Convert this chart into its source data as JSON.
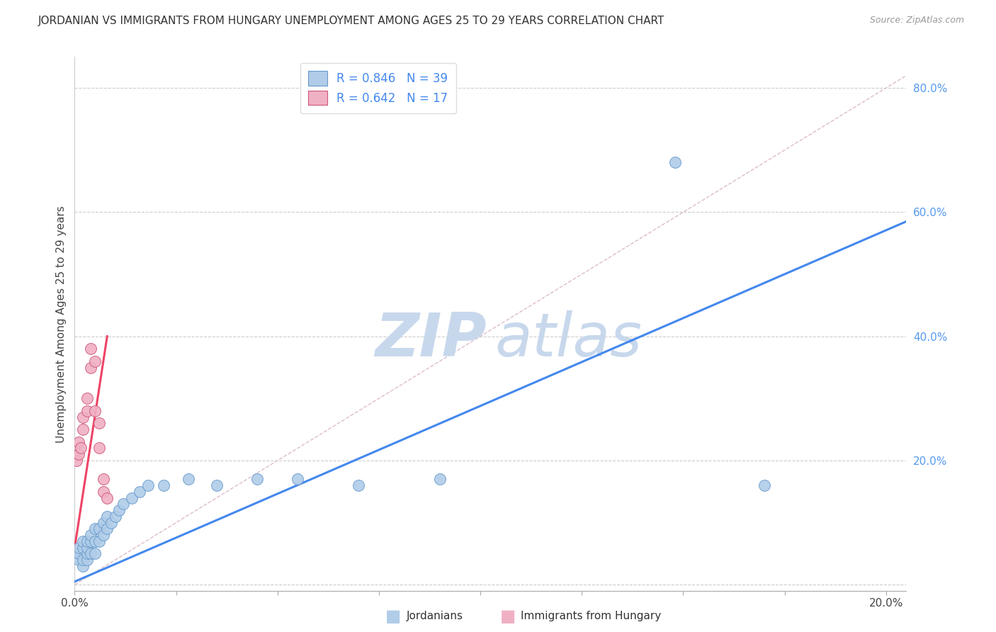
{
  "title": "JORDANIAN VS IMMIGRANTS FROM HUNGARY UNEMPLOYMENT AMONG AGES 25 TO 29 YEARS CORRELATION CHART",
  "source": "Source: ZipAtlas.com",
  "ylabel": "Unemployment Among Ages 25 to 29 years",
  "xlim": [
    0.0,
    0.205
  ],
  "ylim": [
    -0.01,
    0.85
  ],
  "xtick_positions": [
    0.0,
    0.025,
    0.05,
    0.075,
    0.1,
    0.125,
    0.15,
    0.175,
    0.2
  ],
  "ytick_positions": [
    0.0,
    0.2,
    0.4,
    0.6,
    0.8
  ],
  "ytick_labels": [
    "",
    "20.0%",
    "40.0%",
    "60.0%",
    "80.0%"
  ],
  "legend_r1": "R = 0.846",
  "legend_n1": "N = 39",
  "legend_r2": "R = 0.642",
  "legend_n2": "N = 17",
  "jordanians_x": [
    0.001,
    0.001,
    0.001,
    0.002,
    0.002,
    0.002,
    0.002,
    0.003,
    0.003,
    0.003,
    0.003,
    0.004,
    0.004,
    0.004,
    0.005,
    0.005,
    0.005,
    0.006,
    0.006,
    0.007,
    0.007,
    0.008,
    0.008,
    0.009,
    0.01,
    0.011,
    0.012,
    0.014,
    0.016,
    0.018,
    0.022,
    0.028,
    0.035,
    0.045,
    0.055,
    0.07,
    0.09,
    0.148,
    0.17
  ],
  "jordanians_y": [
    0.04,
    0.05,
    0.06,
    0.03,
    0.04,
    0.06,
    0.07,
    0.04,
    0.05,
    0.06,
    0.07,
    0.05,
    0.07,
    0.08,
    0.05,
    0.07,
    0.09,
    0.07,
    0.09,
    0.08,
    0.1,
    0.09,
    0.11,
    0.1,
    0.11,
    0.12,
    0.13,
    0.14,
    0.15,
    0.16,
    0.16,
    0.17,
    0.16,
    0.17,
    0.17,
    0.16,
    0.17,
    0.68,
    0.16
  ],
  "hungary_x": [
    0.0005,
    0.001,
    0.001,
    0.0015,
    0.002,
    0.002,
    0.003,
    0.003,
    0.004,
    0.004,
    0.005,
    0.005,
    0.006,
    0.006,
    0.007,
    0.007,
    0.008
  ],
  "hungary_y": [
    0.2,
    0.21,
    0.23,
    0.22,
    0.25,
    0.27,
    0.28,
    0.3,
    0.38,
    0.35,
    0.36,
    0.28,
    0.26,
    0.22,
    0.17,
    0.15,
    0.14
  ],
  "blue_line_x": [
    0.0,
    0.205
  ],
  "blue_line_y": [
    0.005,
    0.585
  ],
  "pink_line_x": [
    0.0,
    0.008
  ],
  "pink_line_y": [
    0.06,
    0.4
  ],
  "diag_line_x": [
    0.0,
    0.205
  ],
  "diag_line_y": [
    0.0,
    0.82
  ],
  "scatter_color_blue": "#b0cce8",
  "scatter_edge_blue": "#6699cc",
  "scatter_color_pink": "#f0b0c4",
  "scatter_edge_pink": "#cc5577",
  "line_color_blue": "#4488ee",
  "line_color_pink": "#ee4466",
  "diag_color": "#ddbbcc",
  "watermark_zip_color": "#c8d8ec",
  "watermark_atlas_color": "#c8d8ec",
  "ytick_color": "#5599ee",
  "title_fontsize": 11,
  "axis_label_fontsize": 11,
  "tick_fontsize": 11,
  "legend_fontsize": 12
}
